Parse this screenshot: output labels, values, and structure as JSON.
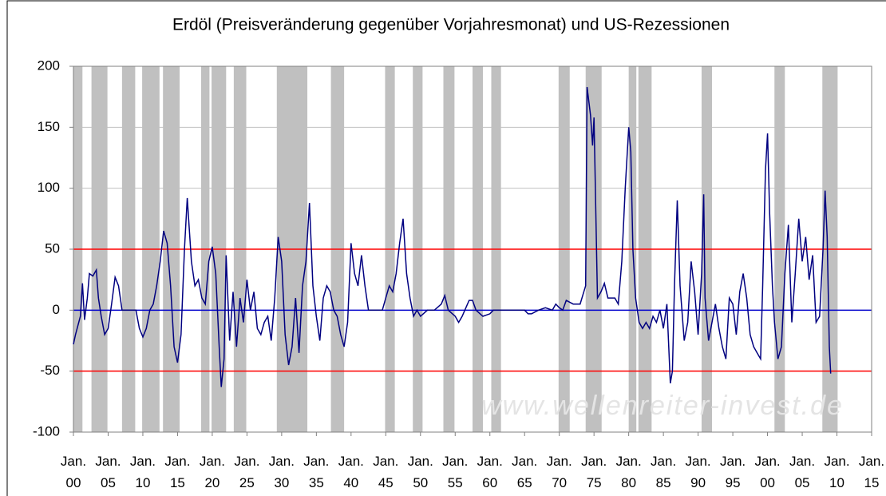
{
  "chart_data": {
    "type": "line",
    "title": "Erdöl (Preisveränderung gegenüber Vorjahresmonat) und US-Rezessionen",
    "annotation": "www.wellenreiter-invest.de",
    "xlim": [
      1900,
      2015
    ],
    "xticks": [
      {
        "value": 1900,
        "label": "Jan. 00"
      },
      {
        "value": 1905,
        "label": "Jan. 05"
      },
      {
        "value": 1910,
        "label": "Jan. 10"
      },
      {
        "value": 1915,
        "label": "Jan. 15"
      },
      {
        "value": 1920,
        "label": "Jan. 20"
      },
      {
        "value": 1925,
        "label": "Jan. 25"
      },
      {
        "value": 1930,
        "label": "Jan. 30"
      },
      {
        "value": 1935,
        "label": "Jan. 35"
      },
      {
        "value": 1940,
        "label": "Jan. 40"
      },
      {
        "value": 1945,
        "label": "Jan. 45"
      },
      {
        "value": 1950,
        "label": "Jan. 50"
      },
      {
        "value": 1955,
        "label": "Jan. 55"
      },
      {
        "value": 1960,
        "label": "Jan. 60"
      },
      {
        "value": 1965,
        "label": "Jan. 65"
      },
      {
        "value": 1970,
        "label": "Jan. 70"
      },
      {
        "value": 1975,
        "label": "Jan. 75"
      },
      {
        "value": 1980,
        "label": "Jan. 80"
      },
      {
        "value": 1985,
        "label": "Jan. 85"
      },
      {
        "value": 1990,
        "label": "Jan. 90"
      },
      {
        "value": 1995,
        "label": "Jan. 95"
      },
      {
        "value": 2000,
        "label": "Jan. 00"
      },
      {
        "value": 2005,
        "label": "Jan. 05"
      },
      {
        "value": 2010,
        "label": "Jan. 10"
      },
      {
        "value": 2015,
        "label": "Jan. 15"
      }
    ],
    "ylim": [
      -100,
      200
    ],
    "yticks": [
      -100,
      -50,
      0,
      50,
      100,
      150,
      200
    ],
    "grid": true,
    "recession_color": "#c0c0c0",
    "recessions": [
      [
        1900.0,
        1901.3
      ],
      [
        1902.6,
        1904.9
      ],
      [
        1907.0,
        1908.9
      ],
      [
        1909.9,
        1912.4
      ],
      [
        1912.9,
        1915.3
      ],
      [
        1918.4,
        1919.6
      ],
      [
        1919.9,
        1922.0
      ],
      [
        1923.1,
        1924.9
      ],
      [
        1929.3,
        1933.7
      ],
      [
        1937.1,
        1939.0
      ],
      [
        1944.9,
        1946.3
      ],
      [
        1948.9,
        1950.3
      ],
      [
        1953.3,
        1954.9
      ],
      [
        1957.5,
        1959.0
      ],
      [
        1960.2,
        1961.6
      ],
      [
        1969.9,
        1971.5
      ],
      [
        1973.8,
        1976.1
      ],
      [
        1980.0,
        1981.1
      ],
      [
        1981.4,
        1983.3
      ],
      [
        1990.5,
        1992.0
      ],
      [
        2001.0,
        2002.5
      ],
      [
        2007.9,
        2010.1
      ]
    ],
    "reference_lines": [
      {
        "value": 50,
        "color": "#ff0000"
      },
      {
        "value": 0,
        "color": "#0000cc"
      },
      {
        "value": -50,
        "color": "#ff0000"
      }
    ],
    "x": [
      1900,
      1900.3,
      1901,
      1901.3,
      1901.6,
      1902,
      1902.3,
      1902.8,
      1903.3,
      1903.6,
      1904,
      1904.5,
      1905,
      1905.5,
      1906,
      1906.5,
      1907,
      1908,
      1909,
      1909.5,
      1910,
      1910.5,
      1911,
      1911.5,
      1912,
      1912.5,
      1913,
      1913.5,
      1914,
      1914.5,
      1915,
      1915.5,
      1916,
      1916.4,
      1917,
      1917.5,
      1918,
      1918.5,
      1919,
      1919.5,
      1920,
      1920.5,
      1921,
      1921.3,
      1921.7,
      1922,
      1922.5,
      1923,
      1923.5,
      1924,
      1924.5,
      1925,
      1925.5,
      1926,
      1926.5,
      1927,
      1927.5,
      1928,
      1928.5,
      1929,
      1929.5,
      1930,
      1930.5,
      1931,
      1931.5,
      1932,
      1932.5,
      1933,
      1933.5,
      1934,
      1934.5,
      1935,
      1935.5,
      1936,
      1936.5,
      1937,
      1937.5,
      1938,
      1938.5,
      1939,
      1939.5,
      1940,
      1940.5,
      1941,
      1941.5,
      1942,
      1942.5,
      1943,
      1944,
      1944.5,
      1945,
      1945.5,
      1946,
      1946.5,
      1947,
      1947.5,
      1948,
      1948.5,
      1949,
      1949.5,
      1950,
      1951,
      1952,
      1953,
      1953.5,
      1954,
      1955,
      1955.5,
      1956,
      1957,
      1957.5,
      1958,
      1959,
      1960,
      1960.5,
      1961,
      1965,
      1965.5,
      1966,
      1967,
      1968,
      1969,
      1969.5,
      1970,
      1970.5,
      1971,
      1972,
      1973,
      1973.8,
      1974,
      1974.5,
      1974.8,
      1975,
      1975.5,
      1976,
      1976.5,
      1977,
      1978,
      1978.5,
      1979,
      1979.5,
      1980,
      1980.3,
      1980.6,
      1981,
      1981.5,
      1982,
      1982.5,
      1983,
      1983.5,
      1984,
      1984.5,
      1985,
      1985.5,
      1986,
      1986.3,
      1986.6,
      1987,
      1987.4,
      1988,
      1988.5,
      1989,
      1989.5,
      1990,
      1990.5,
      1990.8,
      1991,
      1991.5,
      1992,
      1992.5,
      1993,
      1993.5,
      1994,
      1994.5,
      1995,
      1995.5,
      1996,
      1996.5,
      1997,
      1997.5,
      1998,
      1998.5,
      1999,
      1999.3,
      1999.7,
      2000,
      2000.3,
      2000.7,
      2001,
      2001.5,
      2002,
      2002.5,
      2003,
      2003.5,
      2004,
      2004.5,
      2005,
      2005.5,
      2006,
      2006.5,
      2007,
      2007.5,
      2008,
      2008.3,
      2008.6,
      2008.9,
      2009.1
    ],
    "series": [
      {
        "color": "#000080",
        "values": [
          -28,
          -20,
          -5,
          22,
          -8,
          10,
          30,
          28,
          33,
          10,
          -5,
          -20,
          -15,
          5,
          27,
          20,
          0,
          0,
          0,
          -15,
          -22,
          -15,
          0,
          5,
          20,
          40,
          65,
          55,
          20,
          -30,
          -43,
          -20,
          50,
          92,
          40,
          20,
          25,
          10,
          5,
          40,
          52,
          30,
          -30,
          -63,
          -40,
          45,
          -25,
          15,
          -30,
          10,
          -10,
          25,
          0,
          15,
          -15,
          -20,
          -10,
          -5,
          -25,
          10,
          60,
          40,
          -20,
          -45,
          -30,
          10,
          -35,
          20,
          40,
          88,
          20,
          -5,
          -25,
          10,
          20,
          15,
          0,
          -5,
          -20,
          -30,
          -10,
          55,
          30,
          20,
          45,
          20,
          0,
          0,
          0,
          0,
          10,
          20,
          15,
          30,
          55,
          75,
          30,
          10,
          -5,
          0,
          -5,
          0,
          0,
          5,
          12,
          0,
          -5,
          -10,
          -5,
          8,
          8,
          0,
          -5,
          -3,
          0,
          0,
          0,
          -3,
          -3,
          0,
          2,
          0,
          5,
          2,
          0,
          8,
          5,
          5,
          20,
          183,
          160,
          135,
          158,
          10,
          15,
          22,
          10,
          10,
          5,
          40,
          100,
          150,
          130,
          50,
          10,
          -10,
          -15,
          -10,
          -15,
          -5,
          -10,
          0,
          -15,
          5,
          -60,
          -50,
          20,
          90,
          20,
          -25,
          -10,
          40,
          15,
          -20,
          30,
          95,
          10,
          -25,
          -10,
          5,
          -15,
          -30,
          -40,
          10,
          5,
          -20,
          15,
          30,
          10,
          -20,
          -30,
          -35,
          -40,
          20,
          115,
          145,
          80,
          20,
          -10,
          -40,
          -30,
          30,
          70,
          -10,
          30,
          75,
          40,
          60,
          25,
          45,
          -10,
          -5,
          50,
          98,
          60,
          -30,
          -52
        ]
      }
    ]
  }
}
